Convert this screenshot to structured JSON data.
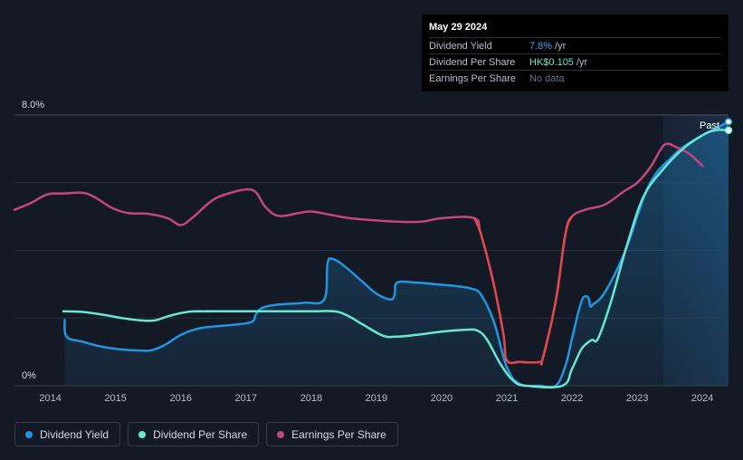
{
  "tooltip": {
    "date": "May 29 2024",
    "rows": [
      {
        "label": "Dividend Yield",
        "value": "7.8%",
        "unit": "/yr"
      },
      {
        "label": "Dividend Per Share",
        "value": "HK$0.105",
        "unit": "/yr"
      },
      {
        "label": "Earnings Per Share",
        "value": "No data",
        "unit": ""
      }
    ]
  },
  "legend": [
    {
      "label": "Dividend Yield",
      "color": "#2394df"
    },
    {
      "label": "Dividend Per Share",
      "color": "#68e8d2"
    },
    {
      "label": "Earnings Per Share",
      "color": "#c4467f"
    }
  ],
  "past_label": "Past",
  "chart_data": {
    "type": "line",
    "ylim": [
      0,
      8
    ],
    "y_tick_labels": [
      "8.0%",
      "0%"
    ],
    "xlim": [
      2013.45,
      2024.4
    ],
    "x_ticks": [
      2014,
      2015,
      2016,
      2017,
      2018,
      2019,
      2020,
      2021,
      2022,
      2023,
      2024
    ],
    "x_tick_labels": [
      "2014",
      "2015",
      "2016",
      "2017",
      "2018",
      "2019",
      "2020",
      "2021",
      "2022",
      "2023",
      "2024"
    ],
    "forecast_region_start": 2023.4,
    "gridlines": true,
    "series": [
      {
        "name": "Dividend Yield",
        "color": "#2394df",
        "filled": true,
        "points": [
          [
            2014.22,
            1.95
          ],
          [
            2014.25,
            1.45
          ],
          [
            2014.5,
            1.3
          ],
          [
            2014.8,
            1.15
          ],
          [
            2015.1,
            1.07
          ],
          [
            2015.4,
            1.04
          ],
          [
            2015.55,
            1.05
          ],
          [
            2015.75,
            1.2
          ],
          [
            2016.0,
            1.5
          ],
          [
            2016.25,
            1.68
          ],
          [
            2016.5,
            1.75
          ],
          [
            2016.9,
            1.82
          ],
          [
            2017.1,
            1.9
          ],
          [
            2017.15,
            2.1
          ],
          [
            2017.25,
            2.3
          ],
          [
            2017.5,
            2.4
          ],
          [
            2017.9,
            2.45
          ],
          [
            2018.2,
            2.55
          ],
          [
            2018.25,
            3.6
          ],
          [
            2018.32,
            3.75
          ],
          [
            2018.5,
            3.55
          ],
          [
            2018.8,
            3.05
          ],
          [
            2019.0,
            2.72
          ],
          [
            2019.22,
            2.55
          ],
          [
            2019.28,
            2.7
          ],
          [
            2019.32,
            3.05
          ],
          [
            2019.6,
            3.05
          ],
          [
            2019.9,
            3.0
          ],
          [
            2020.2,
            2.95
          ],
          [
            2020.45,
            2.87
          ],
          [
            2020.6,
            2.7
          ],
          [
            2020.8,
            1.9
          ],
          [
            2021.0,
            0.55
          ],
          [
            2021.2,
            0.05
          ],
          [
            2021.5,
            0.0
          ],
          [
            2021.75,
            0.0
          ],
          [
            2021.9,
            0.6
          ],
          [
            2022.0,
            1.4
          ],
          [
            2022.1,
            2.2
          ],
          [
            2022.17,
            2.6
          ],
          [
            2022.25,
            2.6
          ],
          [
            2022.28,
            2.35
          ],
          [
            2022.32,
            2.4
          ],
          [
            2022.5,
            2.75
          ],
          [
            2022.8,
            3.9
          ],
          [
            2023.0,
            5.0
          ],
          [
            2023.15,
            5.8
          ],
          [
            2023.3,
            6.3
          ],
          [
            2023.5,
            6.7
          ],
          [
            2023.7,
            7.05
          ],
          [
            2024.0,
            7.4
          ],
          [
            2024.2,
            7.6
          ],
          [
            2024.4,
            7.8
          ]
        ]
      },
      {
        "name": "Dividend Per Share",
        "color": "#68e8d2",
        "filled": false,
        "points": [
          [
            2014.2,
            2.2
          ],
          [
            2014.5,
            2.18
          ],
          [
            2014.8,
            2.1
          ],
          [
            2015.1,
            2.0
          ],
          [
            2015.4,
            1.93
          ],
          [
            2015.6,
            1.93
          ],
          [
            2015.8,
            2.05
          ],
          [
            2016.1,
            2.18
          ],
          [
            2016.4,
            2.2
          ],
          [
            2017.0,
            2.2
          ],
          [
            2018.0,
            2.2
          ],
          [
            2018.35,
            2.2
          ],
          [
            2018.55,
            2.08
          ],
          [
            2018.8,
            1.8
          ],
          [
            2019.1,
            1.48
          ],
          [
            2019.3,
            1.45
          ],
          [
            2019.6,
            1.5
          ],
          [
            2020.0,
            1.6
          ],
          [
            2020.35,
            1.65
          ],
          [
            2020.55,
            1.63
          ],
          [
            2020.7,
            1.35
          ],
          [
            2020.9,
            0.65
          ],
          [
            2021.1,
            0.15
          ],
          [
            2021.3,
            0.0
          ],
          [
            2021.85,
            0.0
          ],
          [
            2022.0,
            0.5
          ],
          [
            2022.15,
            1.1
          ],
          [
            2022.3,
            1.35
          ],
          [
            2022.4,
            1.4
          ],
          [
            2022.6,
            2.5
          ],
          [
            2022.85,
            4.2
          ],
          [
            2023.1,
            5.6
          ],
          [
            2023.4,
            6.4
          ],
          [
            2023.7,
            7.0
          ],
          [
            2024.0,
            7.4
          ],
          [
            2024.2,
            7.55
          ],
          [
            2024.4,
            7.55
          ]
        ]
      },
      {
        "name": "Earnings Per Share",
        "color": "#c4467f",
        "filled": false,
        "points": [
          [
            2013.45,
            5.2
          ],
          [
            2013.7,
            5.4
          ],
          [
            2013.95,
            5.65
          ],
          [
            2014.2,
            5.68
          ],
          [
            2014.5,
            5.7
          ],
          [
            2014.7,
            5.55
          ],
          [
            2014.95,
            5.25
          ],
          [
            2015.2,
            5.1
          ],
          [
            2015.5,
            5.08
          ],
          [
            2015.8,
            4.95
          ],
          [
            2016.0,
            4.75
          ],
          [
            2016.2,
            5.0
          ],
          [
            2016.5,
            5.5
          ],
          [
            2016.8,
            5.72
          ],
          [
            2017.0,
            5.8
          ],
          [
            2017.15,
            5.72
          ],
          [
            2017.3,
            5.28
          ],
          [
            2017.5,
            5.02
          ],
          [
            2017.8,
            5.1
          ],
          [
            2018.0,
            5.15
          ],
          [
            2018.3,
            5.05
          ],
          [
            2018.6,
            4.95
          ],
          [
            2018.9,
            4.9
          ],
          [
            2019.3,
            4.85
          ],
          [
            2019.7,
            4.85
          ],
          [
            2020.0,
            4.95
          ],
          [
            2020.5,
            4.95
          ],
          [
            2020.6,
            4.5
          ],
          [
            2020.8,
            3.0
          ],
          [
            2020.95,
            1.5
          ],
          [
            2021.0,
            0.75
          ],
          [
            2021.2,
            0.7
          ],
          [
            2021.5,
            0.7
          ],
          [
            2021.55,
            0.8
          ],
          [
            2021.75,
            2.5
          ],
          [
            2021.9,
            4.5
          ],
          [
            2022.0,
            5.0
          ],
          [
            2022.2,
            5.2
          ],
          [
            2022.5,
            5.35
          ],
          [
            2022.8,
            5.75
          ],
          [
            2023.0,
            6.0
          ],
          [
            2023.2,
            6.45
          ],
          [
            2023.35,
            6.95
          ],
          [
            2023.45,
            7.15
          ],
          [
            2023.6,
            7.05
          ],
          [
            2023.8,
            6.85
          ],
          [
            2024.0,
            6.5
          ]
        ]
      }
    ]
  }
}
